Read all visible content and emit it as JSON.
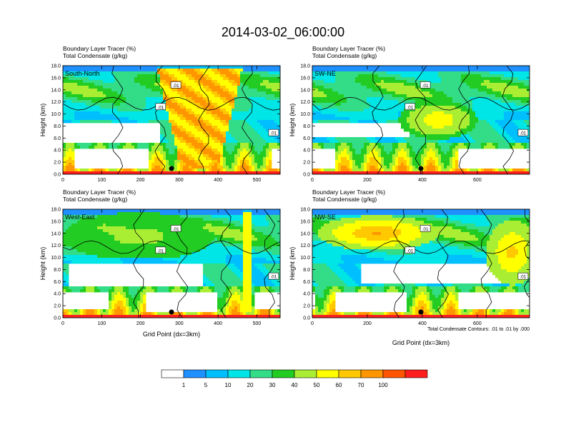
{
  "title": "2014-03-02_06:00:00",
  "colors": {
    "levels": [
      "#ffffff",
      "#1e90ff",
      "#00bfff",
      "#00e5e5",
      "#33dd88",
      "#22cc22",
      "#aaee33",
      "#ffff00",
      "#ffc800",
      "#ff9600",
      "#ff5500",
      "#ff1e1e"
    ],
    "contour": "#000000"
  },
  "panel_header": {
    "line1": "Boundary Layer Tracer   (%)",
    "line2": "Total Condensate   (g/kg)"
  },
  "contour_label": ".01",
  "contour_info": "Total Condensate Contours: .01 to .01 by .000",
  "xlabel": "Grid Point (dx=3km)",
  "ylabel": "Height (km)",
  "colorbar": {
    "labels": [
      "1",
      "5",
      "10",
      "20",
      "30",
      "40",
      "50",
      "60",
      "70",
      "100"
    ]
  },
  "chart_data": [
    {
      "type": "heatmap",
      "name": "South-North",
      "ylabel": "Height (km)",
      "xlim": [
        0,
        560
      ],
      "ylim": [
        0,
        18
      ],
      "xticks": [
        0,
        100,
        200,
        300,
        400,
        500
      ],
      "yticks": [
        0,
        2,
        4,
        6,
        8,
        10,
        12,
        14,
        16,
        18
      ],
      "ytick_labels": [
        "0.0",
        "2.0",
        "4.0",
        "6.0",
        "8.0",
        "10.0",
        "12.0",
        "14.0",
        "16.0",
        "18.0"
      ],
      "marker_x": 280
    },
    {
      "type": "heatmap",
      "name": "SW-NE",
      "ylabel": "Height (km)",
      "xlim": [
        0,
        790
      ],
      "ylim": [
        0,
        18
      ],
      "xticks": [
        0,
        200,
        400,
        600
      ],
      "yticks": [
        0,
        2,
        4,
        6,
        8,
        10,
        12,
        14,
        16,
        18
      ],
      "ytick_labels": [
        "0.0",
        "2.0",
        "4.0",
        "6.0",
        "8.0",
        "10.0",
        "12.0",
        "14.0",
        "16.0",
        "18.0"
      ],
      "marker_x": 395
    },
    {
      "type": "heatmap",
      "name": "West-East",
      "ylabel": "Height (km)",
      "xlabel": "Grid Point (dx=3km)",
      "xlim": [
        0,
        560
      ],
      "ylim": [
        0,
        18
      ],
      "xticks": [
        0,
        100,
        200,
        300,
        400,
        500
      ],
      "yticks": [
        0,
        2,
        4,
        6,
        8,
        10,
        12,
        14,
        16,
        18
      ],
      "ytick_labels": [
        "0.0",
        "2.0",
        "4.0",
        "6.0",
        "8.0",
        "10.0",
        "12.0",
        "14.0",
        "16.0",
        "18.0"
      ],
      "marker_x": 280
    },
    {
      "type": "heatmap",
      "name": "NW-SE",
      "ylabel": "Height (km)",
      "xlabel": "Grid Point (dx=3km)",
      "xlim": [
        0,
        790
      ],
      "ylim": [
        0,
        18
      ],
      "xticks": [
        0,
        200,
        400,
        600
      ],
      "yticks": [
        0,
        2,
        4,
        6,
        8,
        10,
        12,
        14,
        16,
        18
      ],
      "ytick_labels": [
        "0.0",
        "2.0",
        "4.0",
        "6.0",
        "8.0",
        "10.0",
        "12.0",
        "14.0",
        "16.0",
        "18.0"
      ],
      "marker_x": 395
    }
  ]
}
